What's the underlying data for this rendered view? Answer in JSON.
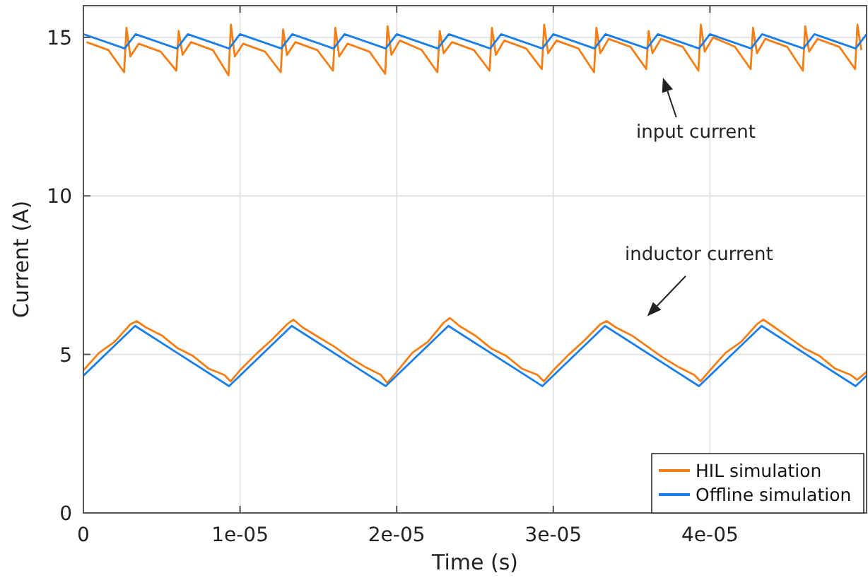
{
  "chart_data": {
    "type": "line",
    "xlabel": "Time (s)",
    "ylabel": "Current (A)",
    "xlim": [
      0,
      5e-05
    ],
    "xticks": [
      0,
      {
        "value": 1e-05,
        "label": "1e-05"
      },
      {
        "value": 2e-05,
        "label": "2e-05"
      },
      {
        "value": 3e-05,
        "label": "3e-05"
      },
      {
        "value": 4e-05,
        "label": "4e-05"
      }
    ],
    "ylim": [
      0,
      16
    ],
    "yticks": [
      0,
      5,
      10,
      15
    ],
    "grid": true,
    "legend": "bottom right",
    "line_style": "solid",
    "marker": "none",
    "annotations": [
      "input current",
      "inductor current"
    ],
    "series": [
      {
        "name": "HIL simulation",
        "color": "#f57f17",
        "x": [
          0,
          1e-06,
          2e-06,
          3e-06,
          3.4e-06,
          4e-06,
          5e-06,
          6e-06,
          7e-06,
          8e-06,
          9e-06,
          9.4e-06,
          1e-05,
          1.1e-05,
          1.2e-05,
          1.3e-05,
          1.34e-05,
          1.4e-05,
          1.5e-05,
          1.6e-05,
          1.7e-05,
          1.8e-05,
          1.9e-05,
          1.94e-05,
          2e-05,
          2.1e-05,
          2.2e-05,
          2.3e-05,
          2.34e-05,
          2.4e-05,
          2.5e-05,
          2.6e-05,
          2.7e-05,
          2.8e-05,
          2.9e-05,
          2.94e-05,
          3e-05,
          3.1e-05,
          3.2e-05,
          3.3e-05,
          3.34e-05,
          3.4e-05,
          3.5e-05,
          3.6e-05,
          3.7e-05,
          3.8e-05,
          3.9e-05,
          3.94e-05,
          4e-05,
          4.1e-05,
          4.2e-05,
          4.3e-05,
          4.34e-05,
          4.4e-05,
          4.5e-05,
          4.6e-05,
          4.7e-05,
          4.8e-05,
          4.9e-05,
          4.94e-05,
          5e-05
        ],
        "values": [
          4.5,
          5.05,
          5.4,
          5.95,
          6.05,
          5.85,
          5.6,
          5.2,
          4.95,
          4.55,
          4.35,
          4.15,
          4.5,
          5.0,
          5.45,
          5.95,
          6.1,
          5.85,
          5.55,
          5.25,
          4.9,
          4.6,
          4.35,
          4.1,
          4.45,
          5.05,
          5.4,
          6.0,
          6.15,
          5.9,
          5.6,
          5.2,
          4.95,
          4.55,
          4.35,
          4.15,
          4.5,
          5.0,
          5.45,
          5.95,
          6.05,
          5.85,
          5.6,
          5.25,
          4.9,
          4.6,
          4.35,
          4.15,
          4.5,
          5.05,
          5.4,
          5.95,
          6.1,
          5.9,
          5.55,
          5.2,
          4.95,
          4.55,
          4.35,
          4.2,
          4.45
        ]
      },
      {
        "color": "#f57f17",
        "x": [
          2e-07,
          1.6e-06,
          2.6e-06,
          2.75e-06,
          3e-06,
          3.533e-06,
          4.933e-06,
          5.933e-06,
          6.083e-06,
          6.333e-06,
          6.867e-06,
          8.267e-06,
          9.267e-06,
          9.417e-06,
          9.667e-06,
          1.02e-05,
          1.16e-05,
          1.26e-05,
          1.275e-05,
          1.3e-05,
          1.3533e-05,
          1.4933e-05,
          1.5933e-05,
          1.6083e-05,
          1.6333e-05,
          1.6867e-05,
          1.8267e-05,
          1.9267e-05,
          1.9417e-05,
          1.9667e-05,
          2.02e-05,
          2.16e-05,
          2.26e-05,
          2.275e-05,
          2.3e-05,
          2.3533e-05,
          2.4933e-05,
          2.5933e-05,
          2.6083e-05,
          2.6333e-05,
          2.6867e-05,
          2.8267e-05,
          2.9267e-05,
          2.9417e-05,
          2.9667e-05,
          3.02e-05,
          3.16e-05,
          3.26e-05,
          3.275e-05,
          3.3e-05,
          3.3533e-05,
          3.4933e-05,
          3.5933e-05,
          3.6083e-05,
          3.6333e-05,
          3.6867e-05,
          3.8267e-05,
          3.9267e-05,
          3.9417e-05,
          3.9667e-05,
          4.02e-05,
          4.16e-05,
          4.26e-05,
          4.275e-05,
          4.3e-05,
          4.3533e-05,
          4.4933e-05,
          4.5933e-05,
          4.6083e-05,
          4.6333e-05,
          4.6867e-05,
          4.8267e-05,
          4.9267e-05,
          4.9417e-05,
          4.9667e-05
        ],
        "values": [
          14.85,
          14.6,
          13.9,
          15.3,
          14.4,
          14.8,
          14.55,
          13.95,
          15.2,
          14.45,
          14.85,
          14.6,
          13.8,
          15.4,
          14.4,
          14.8,
          14.55,
          13.9,
          15.25,
          14.45,
          14.85,
          14.6,
          13.95,
          15.3,
          14.4,
          14.8,
          14.55,
          13.85,
          15.35,
          14.45,
          14.9,
          14.6,
          13.9,
          15.2,
          14.5,
          14.85,
          14.6,
          13.95,
          15.3,
          14.45,
          14.9,
          14.65,
          14.0,
          15.4,
          14.5,
          14.9,
          14.65,
          13.9,
          15.3,
          14.5,
          14.95,
          14.7,
          14.0,
          15.2,
          14.5,
          14.95,
          14.7,
          13.95,
          15.4,
          14.55,
          15.0,
          14.7,
          14.0,
          15.3,
          14.5,
          14.95,
          14.7,
          13.95,
          15.35,
          14.55,
          14.95,
          14.7,
          14.0,
          15.4,
          14.6
        ]
      },
      {
        "name": "Offline simulation",
        "color": "#1a7fe8",
        "x": [
          0,
          3.3e-06,
          9.3e-06,
          1.33e-05,
          1.93e-05,
          2.33e-05,
          2.93e-05,
          3.33e-05,
          3.93e-05,
          4.33e-05,
          4.93e-05,
          5e-05
        ],
        "values": [
          4.33,
          5.9,
          4.0,
          5.9,
          4.0,
          5.9,
          4.0,
          5.9,
          4.0,
          5.9,
          4.0,
          4.33
        ]
      },
      {
        "color": "#1a7fe8",
        "x": [
          0,
          2.633e-06,
          3.333e-06,
          5.967e-06,
          6.667e-06,
          9.3e-06,
          1e-05,
          1.263e-05,
          1.333e-05,
          1.597e-05,
          1.667e-05,
          1.93e-05,
          2e-05,
          2.263e-05,
          2.333e-05,
          2.597e-05,
          2.667e-05,
          2.93e-05,
          3e-05,
          3.263e-05,
          3.333e-05,
          3.597e-05,
          3.667e-05,
          3.93e-05,
          4e-05,
          4.263e-05,
          4.333e-05,
          4.597e-05,
          4.667e-05,
          4.93e-05,
          5e-05
        ],
        "values": [
          15.1,
          14.65,
          15.1,
          14.65,
          15.1,
          14.65,
          15.1,
          14.65,
          15.1,
          14.65,
          15.1,
          14.65,
          15.1,
          14.65,
          15.1,
          14.65,
          15.1,
          14.65,
          15.1,
          14.65,
          15.1,
          14.65,
          15.1,
          14.65,
          15.1,
          14.65,
          15.1,
          14.65,
          15.1,
          14.65,
          15.1
        ]
      }
    ]
  }
}
